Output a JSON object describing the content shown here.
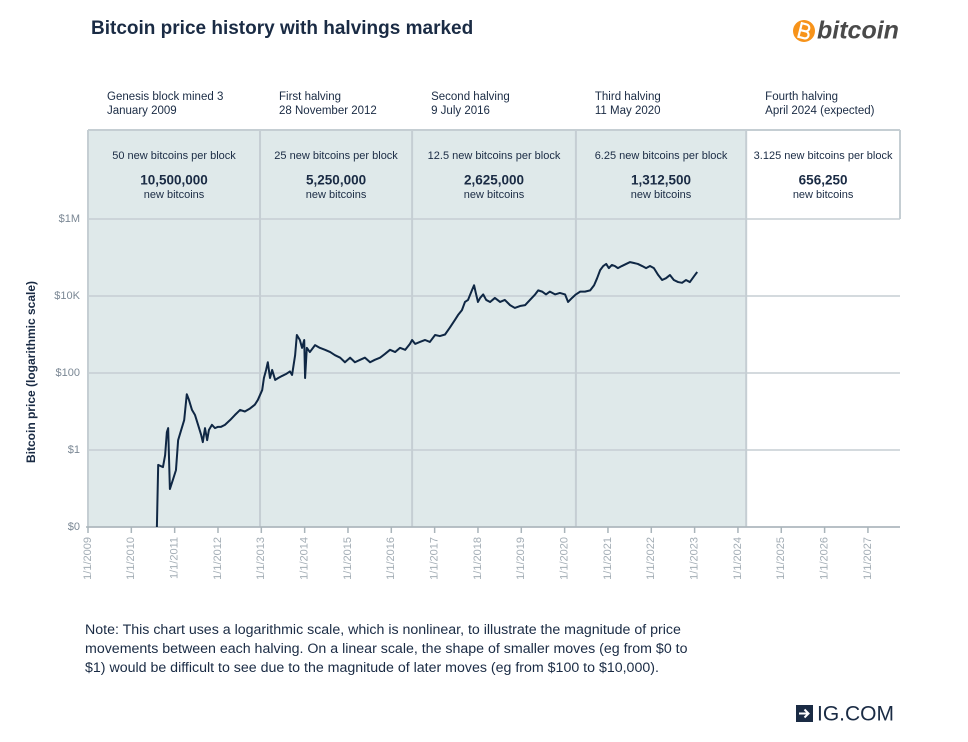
{
  "chart_data": {
    "type": "line",
    "title": "Bitcoin price history with halvings marked",
    "ylabel": "Bitcoin price (logarithmic scale)",
    "log_scale": true,
    "grid": true,
    "color": "#0f2744",
    "xlim": [
      2009,
      2027.74
    ],
    "xticks": [
      {
        "value": 2009,
        "label": "1/1/2009"
      },
      {
        "value": 2010,
        "label": "1/1/2010"
      },
      {
        "value": 2011,
        "label": "1/1/2011"
      },
      {
        "value": 2012,
        "label": "1/1/2012"
      },
      {
        "value": 2013,
        "label": "1/1/2013"
      },
      {
        "value": 2014,
        "label": "1/1/2014"
      },
      {
        "value": 2015,
        "label": "1/1/2015"
      },
      {
        "value": 2016,
        "label": "1/1/2016"
      },
      {
        "value": 2017,
        "label": "1/1/2017"
      },
      {
        "value": 2018,
        "label": "1/1/2018"
      },
      {
        "value": 2019,
        "label": "1/1/2019"
      },
      {
        "value": 2020,
        "label": "1/1/2020"
      },
      {
        "value": 2021,
        "label": "1/1/2021"
      },
      {
        "value": 2022,
        "label": "1/1/2022"
      },
      {
        "value": 2023,
        "label": "1/1/2023"
      },
      {
        "value": 2024,
        "label": "1/1/2024"
      },
      {
        "value": 2025,
        "label": "1/1/2025"
      },
      {
        "value": 2026,
        "label": "1/1/2026"
      },
      {
        "value": 2027,
        "label": "1/1/2027"
      }
    ],
    "ylim": [
      0.01,
      1000000
    ],
    "yticks": [
      {
        "value": 0.01,
        "label": "$0"
      },
      {
        "value": 1,
        "label": "$1"
      },
      {
        "value": 100,
        "label": "$100"
      },
      {
        "value": 10000,
        "label": "$10K"
      },
      {
        "value": 1000000,
        "label": "$1M"
      }
    ],
    "halvings": [
      {
        "x": 2009.0,
        "label": [
          "Genesis block mined 3",
          "January 2009"
        ],
        "reward": "50 new bitcoins per block",
        "amount": "10,500,000",
        "unit": "new bitcoins",
        "shaded": true
      },
      {
        "x": 2012.97,
        "label": [
          "First halving",
          "28 November 2012"
        ],
        "reward": "25 new bitcoins per block",
        "amount": "5,250,000",
        "unit": "new bitcoins",
        "shaded": true
      },
      {
        "x": 2016.48,
        "label": [
          "Second halving",
          "9 July 2016"
        ],
        "reward": "12.5 new bitcoins per block",
        "amount": "2,625,000",
        "unit": "new bitcoins",
        "shaded": true
      },
      {
        "x": 2020.26,
        "label": [
          "Third halving",
          "11 May 2020"
        ],
        "reward": "6.25 new bitcoins per block",
        "amount": "1,312,500",
        "unit": "new bitcoins",
        "shaded": true
      },
      {
        "x": 2024.19,
        "label": [
          "Fourth halving",
          "April 2024 (expected)"
        ],
        "reward": "3.125 new bitcoins per block",
        "amount": "656,250",
        "unit": "new bitcoins",
        "shaded": false
      }
    ],
    "x": [
      2010.59,
      2010.62,
      2010.73,
      2010.78,
      2010.82,
      2010.85,
      2010.89,
      2010.96,
      2011.03,
      2011.08,
      2011.15,
      2011.22,
      2011.28,
      2011.33,
      2011.4,
      2011.47,
      2011.54,
      2011.61,
      2011.65,
      2011.7,
      2011.75,
      2011.79,
      2011.86,
      2011.93,
      2012.0,
      2012.07,
      2012.16,
      2012.28,
      2012.39,
      2012.51,
      2012.62,
      2012.74,
      2012.85,
      2012.92,
      2013.02,
      2013.06,
      2013.11,
      2013.15,
      2013.2,
      2013.25,
      2013.32,
      2013.39,
      2013.48,
      2013.57,
      2013.66,
      2013.71,
      2013.78,
      2013.82,
      2013.89,
      2013.94,
      2013.99,
      2014.01,
      2014.05,
      2014.12,
      2014.24,
      2014.35,
      2014.47,
      2014.59,
      2014.7,
      2014.82,
      2014.93,
      2015.05,
      2015.16,
      2015.28,
      2015.39,
      2015.51,
      2015.62,
      2015.74,
      2015.85,
      2015.97,
      2016.09,
      2016.2,
      2016.32,
      2016.43,
      2016.48,
      2016.55,
      2016.66,
      2016.78,
      2016.89,
      2017.01,
      2017.12,
      2017.24,
      2017.35,
      2017.47,
      2017.54,
      2017.63,
      2017.7,
      2017.77,
      2017.86,
      2017.91,
      2017.95,
      2018.0,
      2018.05,
      2018.12,
      2018.19,
      2018.28,
      2018.39,
      2018.51,
      2018.62,
      2018.74,
      2018.85,
      2018.97,
      2019.09,
      2019.2,
      2019.32,
      2019.39,
      2019.48,
      2019.57,
      2019.66,
      2019.78,
      2019.89,
      2020.01,
      2020.08,
      2020.17,
      2020.26,
      2020.36,
      2020.47,
      2020.59,
      2020.68,
      2020.75,
      2020.82,
      2020.89,
      2020.96,
      2021.02,
      2021.09,
      2021.16,
      2021.23,
      2021.32,
      2021.42,
      2021.51,
      2021.6,
      2021.69,
      2021.79,
      2021.88,
      2021.97,
      2022.06,
      2022.16,
      2022.25,
      2022.34,
      2022.43,
      2022.52,
      2022.62,
      2022.71,
      2022.8,
      2022.89,
      2022.99,
      2023.06
    ],
    "values": [
      0.01,
      0.41,
      0.36,
      0.74,
      2.9,
      3.7,
      0.097,
      0.17,
      0.3,
      1.8,
      3.3,
      6,
      28,
      20,
      11,
      8.1,
      4.5,
      2.5,
      1.6,
      3.7,
      1.8,
      3.3,
      4.5,
      3.7,
      4,
      4,
      4.5,
      6,
      8.1,
      11,
      10,
      12,
      15,
      20,
      36,
      74,
      120,
      190,
      74,
      120,
      66,
      74,
      84,
      94,
      110,
      89,
      290,
      970,
      720,
      450,
      720,
      74,
      450,
      350,
      530,
      450,
      400,
      350,
      290,
      250,
      190,
      250,
      190,
      220,
      250,
      190,
      220,
      250,
      310,
      400,
      350,
      450,
      400,
      570,
      720,
      570,
      640,
      720,
      640,
      970,
      910,
      1000,
      1500,
      2400,
      3200,
      4300,
      7000,
      7900,
      14000,
      19000,
      12000,
      7000,
      8900,
      11000,
      7900,
      7000,
      8900,
      7000,
      7900,
      5800,
      4900,
      5500,
      5800,
      7900,
      11000,
      14000,
      13000,
      11000,
      13000,
      11000,
      12000,
      11000,
      7000,
      8900,
      11000,
      13000,
      13000,
      14000,
      19000,
      29000,
      47000,
      60000,
      68000,
      53000,
      64000,
      60000,
      53000,
      60000,
      68000,
      76000,
      72000,
      68000,
      60000,
      53000,
      60000,
      53000,
      35000,
      26000,
      29000,
      35000,
      26000,
      23000,
      22000,
      26000,
      23000,
      33000,
      42000
    ],
    "note": [
      "Note: This chart uses a logarithmic scale, which is nonlinear, to illustrate the magnitude of price",
      "movements between each halving. On a linear scale, the shape of smaller moves (eg from $0 to",
      "$1) would be difficult to see due to the magnitude of later moves (eg from $100 to $10,000)."
    ]
  },
  "branding": {
    "bitcoin_logo": "bitcoin",
    "ig_logo": "IG.COM"
  }
}
